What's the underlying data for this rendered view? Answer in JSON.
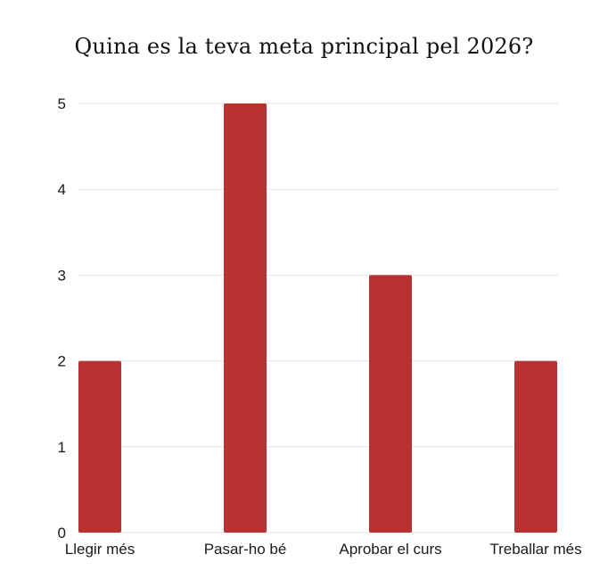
{
  "chart_data": {
    "type": "bar",
    "title": "Quina es la teva meta principal pel 2026?",
    "categories": [
      "Llegir més",
      "Pasar-ho bé",
      "Aprobar el curs",
      "Treballar més"
    ],
    "values": [
      2,
      5,
      3,
      2
    ],
    "xlabel": "",
    "ylabel": "",
    "ylim": [
      0,
      5
    ],
    "yticks": [
      0,
      1,
      2,
      3,
      4,
      5
    ],
    "grid": true,
    "legend": "none",
    "bar_color": "#b83232",
    "grid_color": "#e3e3e3"
  }
}
